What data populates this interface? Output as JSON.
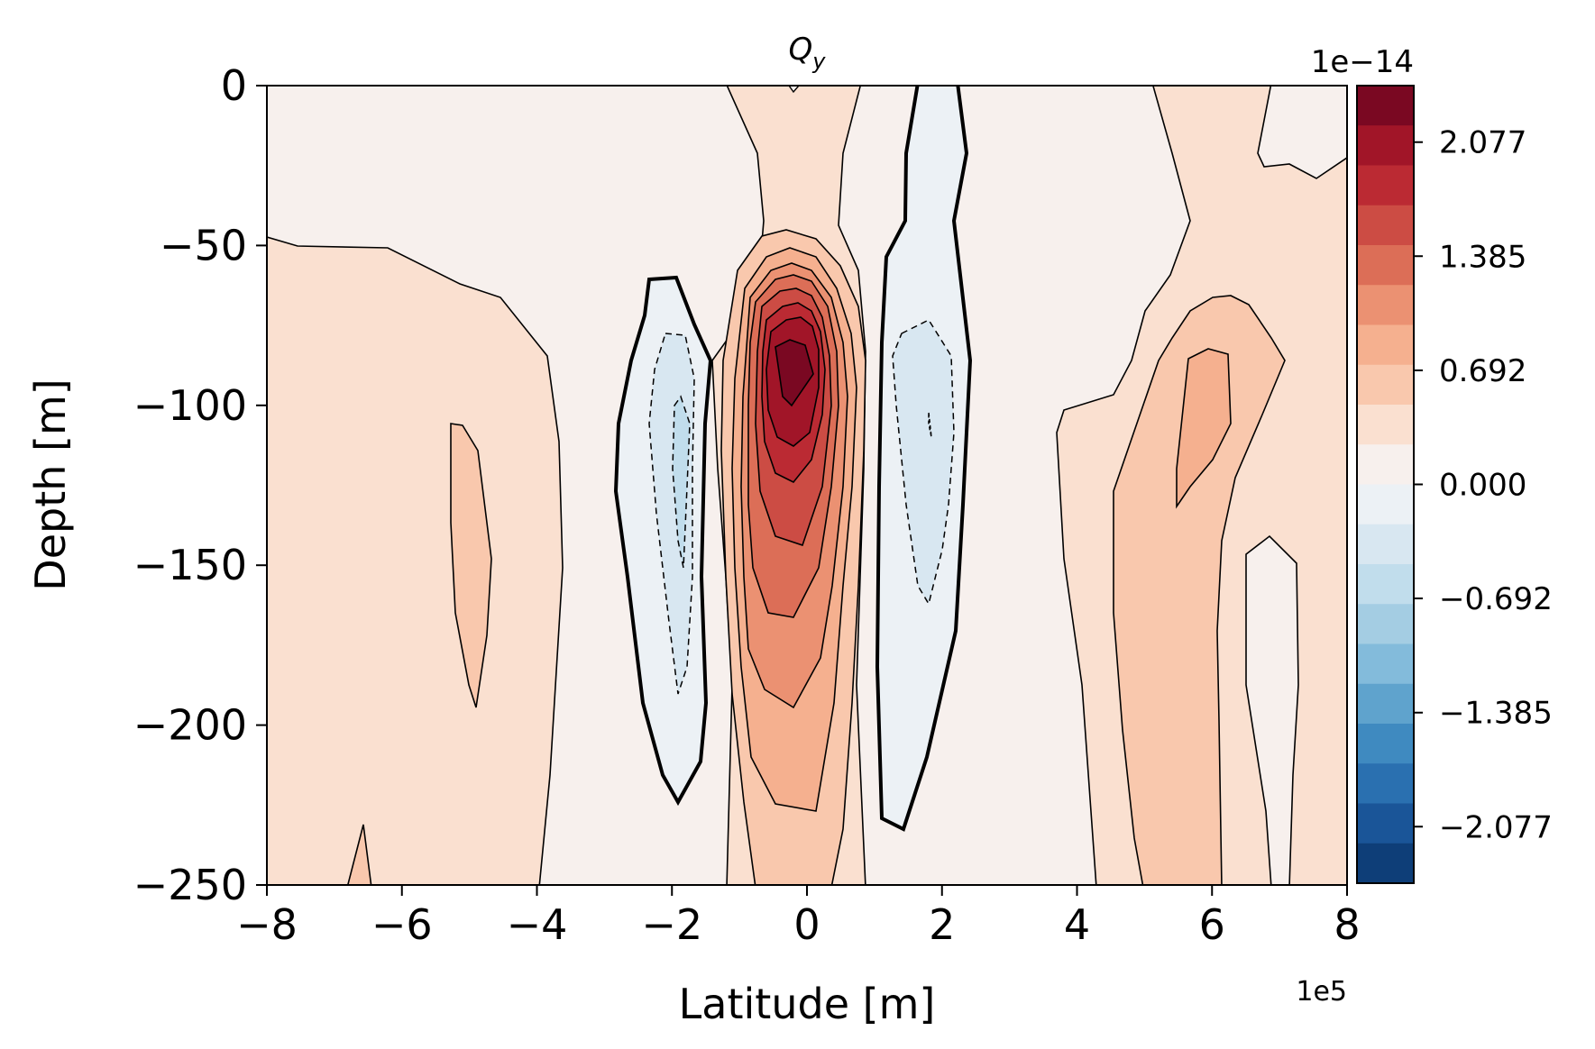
{
  "chart_data": {
    "type": "contourf",
    "title_main": "Q",
    "title_sub": "y",
    "xlabel": "Latitude [m]",
    "ylabel": "Depth [m]",
    "xlim": [
      -8,
      8
    ],
    "ylim": [
      -250,
      0
    ],
    "x_ticks": [
      "−8",
      "−6",
      "−4",
      "−2",
      "0",
      "2",
      "4",
      "6",
      "8"
    ],
    "x_tick_values": [
      -8,
      -6,
      -4,
      -2,
      0,
      2,
      4,
      6,
      8
    ],
    "y_ticks": [
      "0",
      "−50",
      "−100",
      "−150",
      "−200",
      "−250"
    ],
    "y_tick_values": [
      0,
      -50,
      -100,
      -150,
      -200,
      -250
    ],
    "x_multiplier": "1e5",
    "colorbar": {
      "multiplier": "1e−14",
      "ticks": [
        "2.077",
        "1.385",
        "0.692",
        "0.000",
        "−0.692",
        "−1.385",
        "−2.077"
      ],
      "tick_values": [
        2.077,
        1.385,
        0.692,
        0.0,
        -0.692,
        -1.385,
        -2.077
      ],
      "range": [
        -2.42,
        2.42
      ],
      "colors_top_to_bottom": [
        "#7a0822",
        "#a11528",
        "#bb2a33",
        "#cc4c44",
        "#dc6e57",
        "#eb9172",
        "#f5b08f",
        "#f9c8ad",
        "#fae0d0",
        "#f7f0ed",
        "#ecf1f5",
        "#d8e7f1",
        "#c1ddec",
        "#a4cde3",
        "#83bbdb",
        "#5fa3cd",
        "#3f8ac0",
        "#2a70b0",
        "#1a5598",
        "#0e3e78"
      ]
    },
    "fields": [
      {
        "name": "center-positive-core",
        "center": [
          -0.2,
          -100
        ],
        "values_1e-14": [
          0.35,
          0.69,
          1.04,
          1.38,
          1.73,
          2.08,
          2.3
        ]
      },
      {
        "name": "left-negative-lobe",
        "center": [
          -1.9,
          -130
        ],
        "values_1e-14": [
          -0.35,
          -0.6
        ]
      },
      {
        "name": "right-negative-lobe",
        "center": [
          1.8,
          -110
        ],
        "values_1e-14": [
          -0.35,
          -0.45
        ]
      },
      {
        "name": "right-positive-lobe",
        "center": [
          5.9,
          -100
        ],
        "values_1e-14": [
          0.35,
          0.69,
          0.9
        ]
      },
      {
        "name": "left-positive-lobe",
        "center": [
          -4.9,
          -150
        ],
        "values_1e-14": [
          0.2,
          0.45
        ]
      }
    ]
  }
}
